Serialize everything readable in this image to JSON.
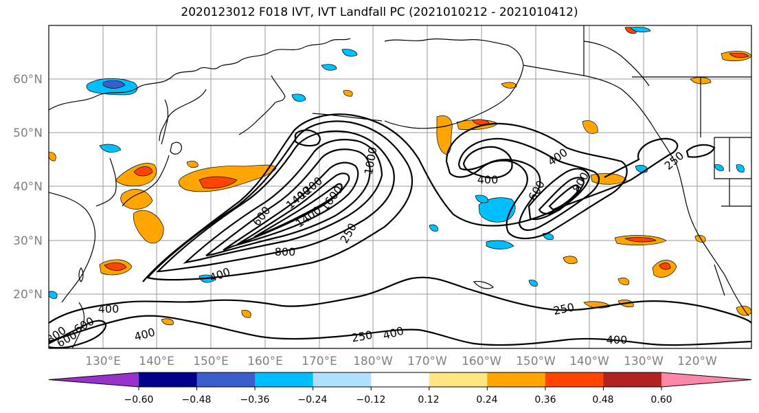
{
  "title": "2020123012 F018 IVT, IVT Landfall PC (2021010212 - 2021010412)",
  "lat_labels": [
    "60°N",
    "50°N",
    "40°N",
    "30°N",
    "20°N"
  ],
  "lon_labels": [
    "130°E",
    "140°E",
    "150°E",
    "160°E",
    "170°E",
    "180°W",
    "170°W",
    "160°W",
    "150°W",
    "140°W",
    "130°W",
    "120°W"
  ],
  "contour_labels": [
    "1000",
    "400",
    "600",
    "800",
    "600",
    "1400",
    "1600",
    "1200",
    "1400",
    "800",
    "400",
    "250",
    "600",
    "400",
    "800",
    "250",
    "400",
    "600",
    "250",
    "400",
    "250",
    "400",
    "400"
  ],
  "colorbar": {
    "ticks": [
      "−0.60",
      "−0.48",
      "−0.36",
      "−0.24",
      "−0.12",
      "0.12",
      "0.24",
      "0.36",
      "0.48",
      "0.60"
    ],
    "colors": [
      "#9932cc",
      "#00008b",
      "#3a5fcd",
      "#00bfff",
      "#b0e2ff",
      "#ffffff",
      "#ffe680",
      "#ffa500",
      "#ff4500",
      "#b22222",
      "#ff88aa"
    ]
  },
  "colors": {
    "land_lines": "#000000",
    "grid": "#999999",
    "axis_labels": "#808080"
  }
}
